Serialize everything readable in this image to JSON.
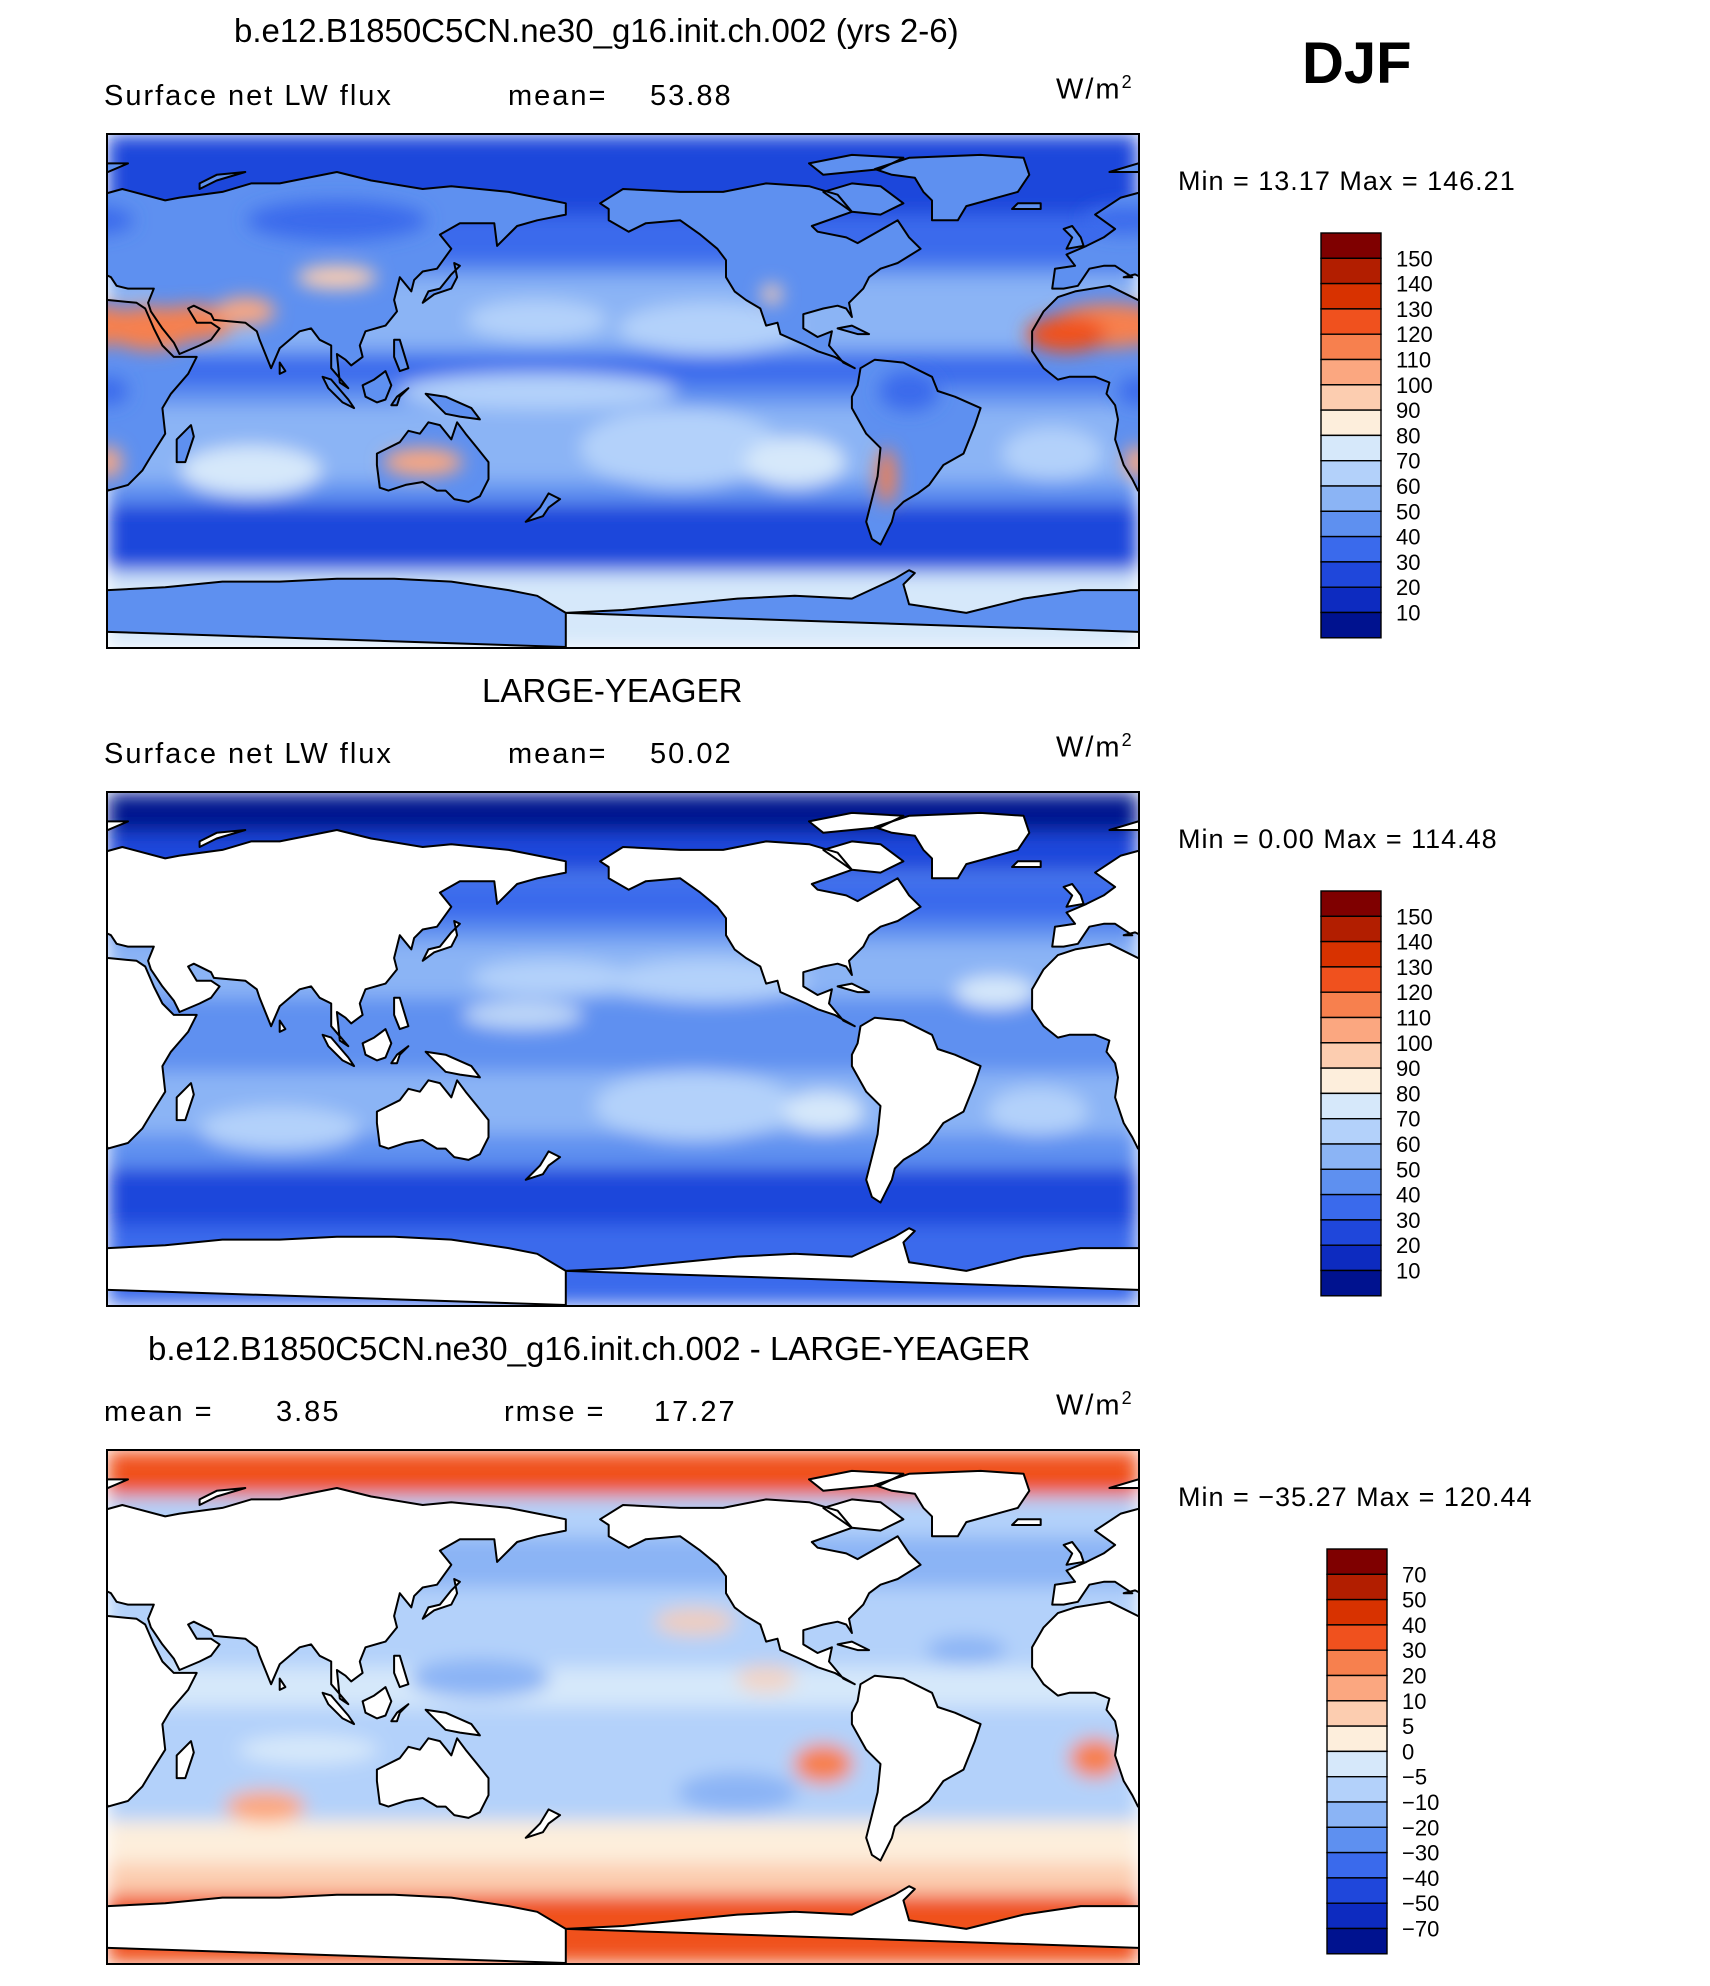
{
  "season": "DJF",
  "panels": [
    {
      "title": "b.e12.B1850C5CN.ne30_g16.init.ch.002 (yrs 2-6)",
      "left_label": "Surface net LW flux",
      "mean_label": "mean=",
      "mean_value": "53.88",
      "units_base": "W/m",
      "units_exp": "2",
      "minmax": "Min =    13.17  Max  =  146.21",
      "colorbar_labels": [
        "150",
        "140",
        "130",
        "120",
        "110",
        "100",
        "90",
        "80",
        "70",
        "60",
        "50",
        "40",
        "30",
        "20",
        "10"
      ],
      "colorbar_colors": [
        "#7f0000",
        "#b21e00",
        "#d83200",
        "#f0511e",
        "#f7804e",
        "#fba780",
        "#fccdb0",
        "#fdeedc",
        "#d6e8fa",
        "#b3d1fa",
        "#8bb4f5",
        "#5e90f0",
        "#3a6aec",
        "#1f47db",
        "#0d2bc0",
        "#00128f"
      ]
    },
    {
      "title": "LARGE-YEAGER",
      "left_label": "Surface net LW flux",
      "mean_label": "mean=",
      "mean_value": "50.02",
      "units_base": "W/m",
      "units_exp": "2",
      "minmax": "Min =      0.00  Max  =  114.48",
      "colorbar_labels": [
        "150",
        "140",
        "130",
        "120",
        "110",
        "100",
        "90",
        "80",
        "70",
        "60",
        "50",
        "40",
        "30",
        "20",
        "10"
      ],
      "colorbar_colors": [
        "#7f0000",
        "#b21e00",
        "#d83200",
        "#f0511e",
        "#f7804e",
        "#fba780",
        "#fccdb0",
        "#fdeedc",
        "#d6e8fa",
        "#b3d1fa",
        "#8bb4f5",
        "#5e90f0",
        "#3a6aec",
        "#1f47db",
        "#0d2bc0",
        "#00128f"
      ]
    },
    {
      "title": "b.e12.B1850C5CN.ne30_g16.init.ch.002 - LARGE-YEAGER",
      "left_label": "mean =",
      "left_value": "3.85",
      "mean_label": "rmse =",
      "mean_value": "17.27",
      "units_base": "W/m",
      "units_exp": "2",
      "minmax": "Min  = −35.27  Max  =  120.44",
      "colorbar_labels": [
        "70",
        "50",
        "40",
        "30",
        "20",
        "10",
        "5",
        "0",
        "−5",
        "−10",
        "−20",
        "−30",
        "−40",
        "−50",
        "−70"
      ],
      "colorbar_colors": [
        "#7f0000",
        "#b21e00",
        "#d83200",
        "#f0511e",
        "#f7804e",
        "#fba780",
        "#fccdb0",
        "#fdeedc",
        "#d6e8fa",
        "#b3d1fa",
        "#8bb4f5",
        "#5e90f0",
        "#3a6aec",
        "#1f47db",
        "#0d2bc0",
        "#00128f"
      ]
    }
  ],
  "chart_data": [
    {
      "type": "heatmap",
      "title": "b.e12.B1850C5CN.ne30_g16.init.ch.002 (yrs 2-6)",
      "variable": "Surface net LW flux",
      "units": "W/m2",
      "season": "DJF",
      "mean": 53.88,
      "min": 13.17,
      "max": 146.21,
      "levels": [
        10,
        20,
        30,
        40,
        50,
        60,
        70,
        80,
        90,
        100,
        110,
        120,
        130,
        140,
        150
      ],
      "regions": [
        {
          "name": "Sahara / Arabia",
          "approx_value": 125
        },
        {
          "name": "Central Australia",
          "approx_value": 105
        },
        {
          "name": "Southern Ocean",
          "approx_value": 35
        },
        {
          "name": "Subtropical ocean gyres",
          "approx_value": 75
        },
        {
          "name": "Arctic",
          "approx_value": 25
        },
        {
          "name": "Antarctica",
          "approx_value": 70
        }
      ]
    },
    {
      "type": "heatmap",
      "title": "LARGE-YEAGER",
      "variable": "Surface net LW flux",
      "units": "W/m2",
      "season": "DJF",
      "mean": 50.02,
      "min": 0.0,
      "max": 114.48,
      "levels": [
        10,
        20,
        30,
        40,
        50,
        60,
        70,
        80,
        90,
        100,
        110,
        120,
        130,
        140,
        150
      ],
      "coverage": "ocean only",
      "regions": [
        {
          "name": "Arctic Ocean",
          "approx_value": 5
        },
        {
          "name": "Subtropical ocean gyres",
          "approx_value": 70
        },
        {
          "name": "Southern Ocean",
          "approx_value": 35
        },
        {
          "name": "Equatorial ocean",
          "approx_value": 45
        }
      ]
    },
    {
      "type": "heatmap",
      "title": "b.e12.B1850C5CN.ne30_g16.init.ch.002 - LARGE-YEAGER",
      "units": "W/m2",
      "season": "DJF",
      "mean": 3.85,
      "rmse": 17.27,
      "min": -35.27,
      "max": 120.44,
      "levels": [
        -70,
        -50,
        -40,
        -30,
        -20,
        -10,
        -5,
        0,
        5,
        10,
        20,
        30,
        40,
        50,
        70
      ],
      "coverage": "ocean only",
      "regions": [
        {
          "name": "Arctic Ocean",
          "approx_value": 35
        },
        {
          "name": "Antarctic coast",
          "approx_value": 35
        },
        {
          "name": "SE Pacific / SE Atlantic stratocumulus",
          "approx_value": 20
        },
        {
          "name": "Tropical warm pool",
          "approx_value": -10
        },
        {
          "name": "Subtropical oceans",
          "approx_value": -8
        }
      ]
    }
  ]
}
